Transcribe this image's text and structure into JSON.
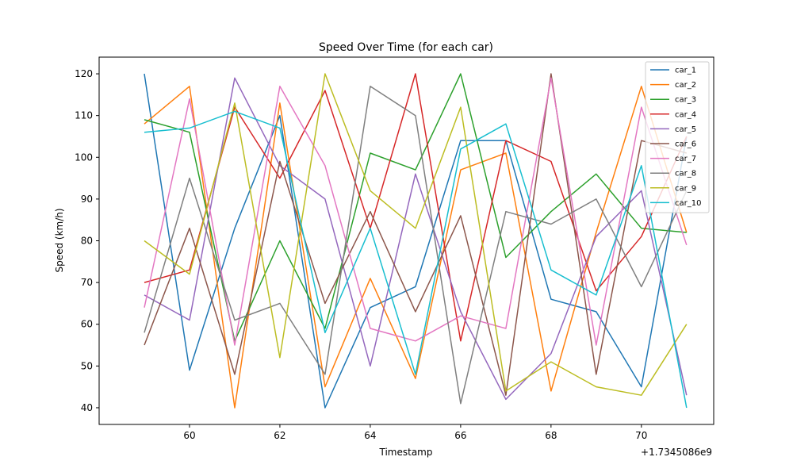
{
  "chart_data": {
    "type": "line",
    "title": "Speed Over Time (for each car)",
    "xlabel": "Timestamp",
    "ylabel": "Speed (km/h)",
    "x_offset_label": "+1.7345086e9",
    "x": [
      59,
      60,
      61,
      62,
      63,
      64,
      65,
      66,
      67,
      68,
      69,
      70,
      71
    ],
    "xticks": [
      60,
      62,
      64,
      66,
      68,
      70
    ],
    "yticks": [
      40,
      50,
      60,
      70,
      80,
      90,
      100,
      110,
      120
    ],
    "xlim": [
      58.0,
      71.6
    ],
    "ylim": [
      36,
      124
    ],
    "grid": false,
    "legend_position": "top-right",
    "series": [
      {
        "name": "car_1",
        "color": "#1f77b4",
        "values": [
          120,
          49,
          83,
          110,
          40,
          64,
          69,
          104,
          104,
          66,
          63,
          45,
          105
        ]
      },
      {
        "name": "car_2",
        "color": "#ff7f0e",
        "values": [
          108,
          117,
          40,
          113,
          45,
          71,
          47,
          97,
          101,
          44,
          82,
          117,
          82
        ]
      },
      {
        "name": "car_3",
        "color": "#2ca02c",
        "values": [
          109,
          106,
          56,
          80,
          59,
          101,
          97,
          120,
          76,
          87,
          96,
          83,
          82
        ]
      },
      {
        "name": "car_4",
        "color": "#d62728",
        "values": [
          70,
          73,
          112,
          95,
          116,
          83,
          120,
          56,
          104,
          99,
          68,
          81,
          105
        ]
      },
      {
        "name": "car_5",
        "color": "#9467bd",
        "values": [
          67,
          61,
          119,
          98,
          90,
          50,
          96,
          63,
          42,
          53,
          81,
          92,
          43
        ]
      },
      {
        "name": "car_6",
        "color": "#8c564b",
        "values": [
          55,
          83,
          48,
          99,
          65,
          87,
          63,
          86,
          43,
          120,
          48,
          104,
          101
        ]
      },
      {
        "name": "car_7",
        "color": "#e377c2",
        "values": [
          64,
          114,
          55,
          117,
          98,
          59,
          56,
          62,
          59,
          119,
          55,
          112,
          79
        ]
      },
      {
        "name": "car_8",
        "color": "#7f7f7f",
        "values": [
          58,
          95,
          61,
          65,
          48,
          117,
          110,
          41,
          87,
          84,
          90,
          69,
          92
        ]
      },
      {
        "name": "car_9",
        "color": "#bcbd22",
        "values": [
          80,
          72,
          113,
          52,
          120,
          92,
          83,
          112,
          44,
          51,
          45,
          43,
          60
        ]
      },
      {
        "name": "car_10",
        "color": "#17becf",
        "values": [
          106,
          107,
          111,
          107,
          58,
          83,
          48,
          102,
          108,
          73,
          67,
          98,
          40
        ]
      }
    ]
  }
}
